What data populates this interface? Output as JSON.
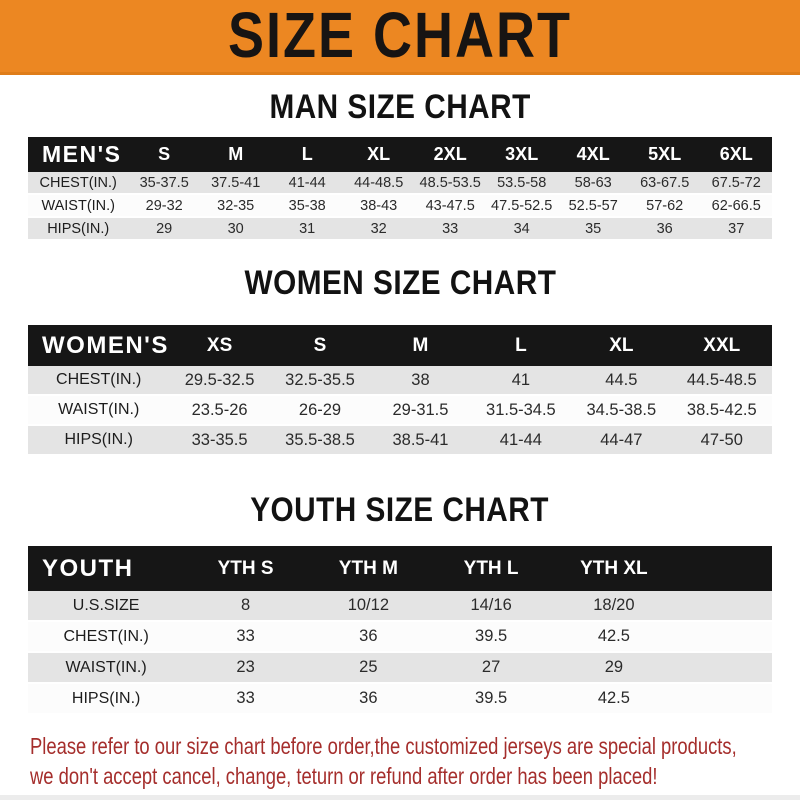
{
  "banner": {
    "title": "SIZE CHART"
  },
  "colors": {
    "banner_bg": "#ec8722",
    "header_band_bg": "#161616",
    "row_alt_gray": "#e4e4e4",
    "footer_text": "#a52e2c"
  },
  "sections": [
    {
      "heading": "MAN SIZE CHART",
      "table": {
        "label": "MEN'S",
        "columns": [
          "S",
          "M",
          "L",
          "XL",
          "2XL",
          "3XL",
          "4XL",
          "5XL",
          "6XL"
        ],
        "rows": [
          {
            "label": "CHEST(IN.)",
            "values": [
              "35-37.5",
              "37.5-41",
              "41-44",
              "44-48.5",
              "48.5-53.5",
              "53.5-58",
              "58-63",
              "63-67.5",
              "67.5-72"
            ]
          },
          {
            "label": "WAIST(IN.)",
            "values": [
              "29-32",
              "32-35",
              "35-38",
              "38-43",
              "43-47.5",
              "47.5-52.5",
              "52.5-57",
              "57-62",
              "62-66.5"
            ]
          },
          {
            "label": "HIPS(IN.)",
            "values": [
              "29",
              "30",
              "31",
              "32",
              "33",
              "34",
              "35",
              "36",
              "37"
            ]
          }
        ]
      }
    },
    {
      "heading": "WOMEN SIZE CHART",
      "table": {
        "label": "WOMEN'S",
        "columns": [
          "XS",
          "S",
          "M",
          "L",
          "XL",
          "XXL"
        ],
        "rows": [
          {
            "label": "CHEST(IN.)",
            "values": [
              "29.5-32.5",
              "32.5-35.5",
              "38",
              "41",
              "44.5",
              "44.5-48.5"
            ]
          },
          {
            "label": "WAIST(IN.)",
            "values": [
              "23.5-26",
              "26-29",
              "29-31.5",
              "31.5-34.5",
              "34.5-38.5",
              "38.5-42.5"
            ]
          },
          {
            "label": "HIPS(IN.)",
            "values": [
              "33-35.5",
              "35.5-38.5",
              "38.5-41",
              "41-44",
              "44-47",
              "47-50"
            ]
          }
        ]
      }
    },
    {
      "heading": "YOUTH SIZE CHART",
      "table": {
        "label": "YOUTH",
        "columns": [
          "YTH S",
          "YTH M",
          "YTH L",
          "YTH XL"
        ],
        "rows": [
          {
            "label": "U.S.SIZE",
            "values": [
              "8",
              "10/12",
              "14/16",
              "18/20"
            ]
          },
          {
            "label": "CHEST(IN.)",
            "values": [
              "33",
              "36",
              "39.5",
              "42.5"
            ]
          },
          {
            "label": "WAIST(IN.)",
            "values": [
              "23",
              "25",
              "27",
              "29"
            ]
          },
          {
            "label": "HIPS(IN.)",
            "values": [
              "33",
              "36",
              "39.5",
              "42.5"
            ]
          }
        ]
      }
    }
  ],
  "footer": {
    "line1": "Please refer to our size chart before order,the customized jerseys are special products,",
    "line2": "we don't accept cancel, change, teturn or refund after order has been placed!"
  }
}
